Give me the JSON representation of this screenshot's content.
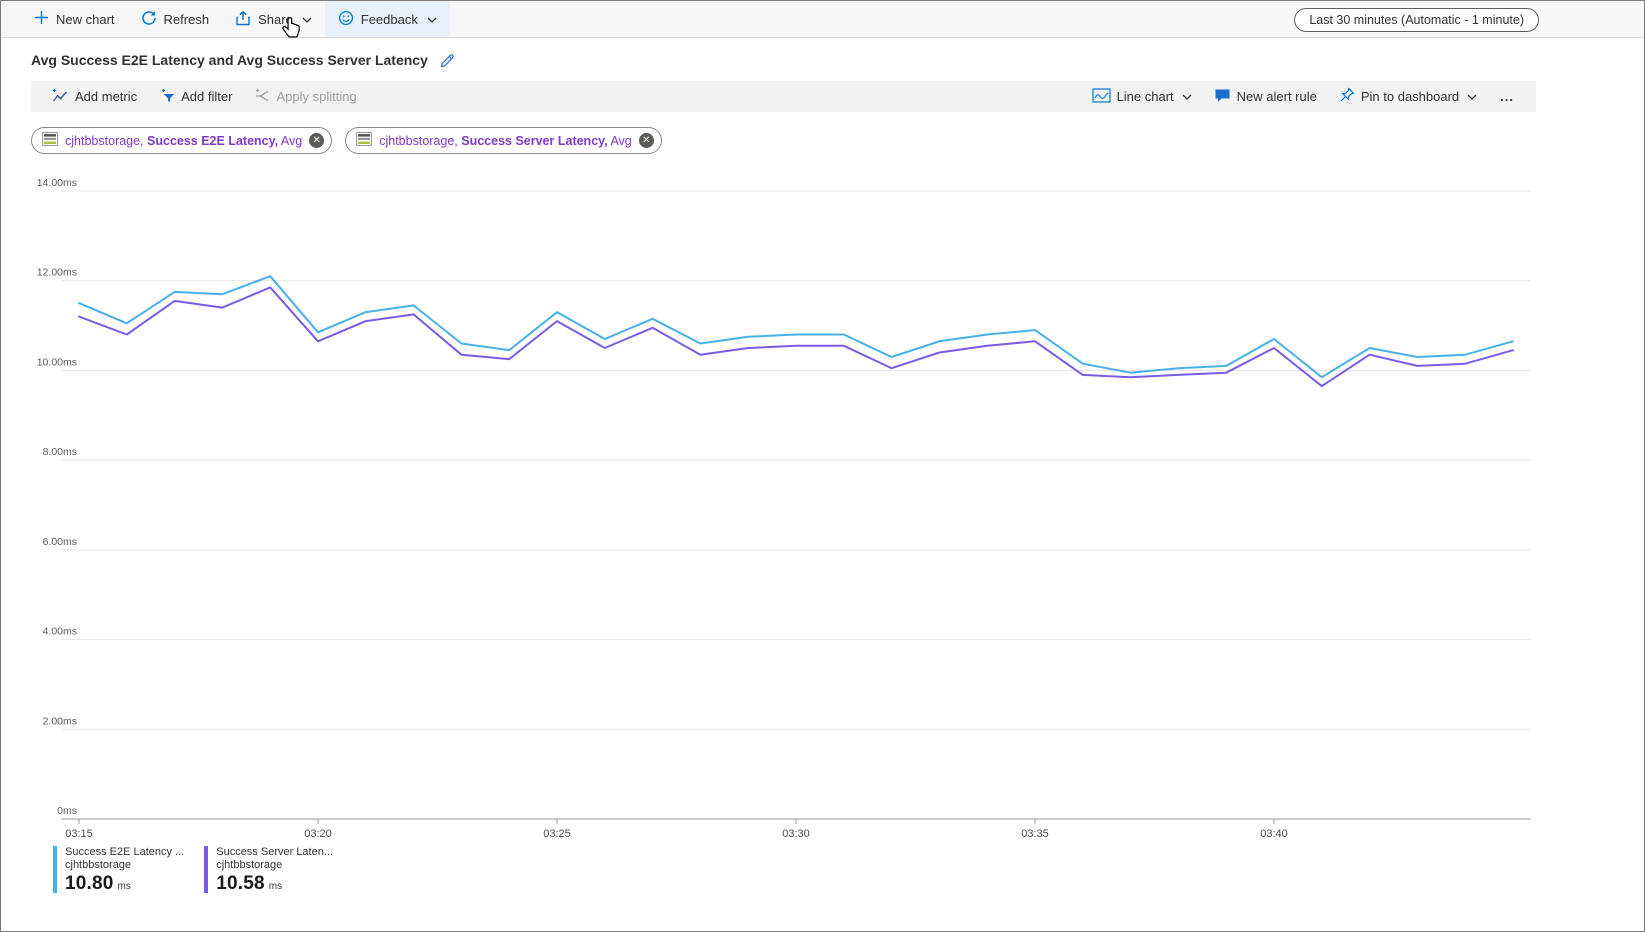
{
  "toolbar": {
    "new_chart": "New chart",
    "refresh": "Refresh",
    "share": "Share",
    "feedback": "Feedback",
    "time_range": "Last 30 minutes (Automatic - 1 minute)"
  },
  "header": {
    "title": "Avg Success E2E Latency and Avg Success Server Latency"
  },
  "chart_toolbar": {
    "add_metric": "Add metric",
    "add_filter": "Add filter",
    "apply_splitting": "Apply splitting",
    "chart_type": "Line chart",
    "new_alert_rule": "New alert rule",
    "pin_to_dashboard": "Pin to dashboard",
    "more": "..."
  },
  "metric_pills": [
    {
      "resource": "cjhtbbstorage,",
      "metric": "Success E2E Latency,",
      "aggregation": "Avg"
    },
    {
      "resource": "cjhtbbstorage,",
      "metric": "Success Server Latency,",
      "aggregation": "Avg"
    }
  ],
  "legend": [
    {
      "name": "Success E2E Latency ...",
      "resource": "cjhtbbstorage",
      "value": "10.80",
      "unit": "ms",
      "color": "#47b0e8"
    },
    {
      "name": "Success Server Laten...",
      "resource": "cjhtbbstorage",
      "value": "10.58",
      "unit": "ms",
      "color": "#7b5be6"
    }
  ],
  "colors": {
    "accent_blue": "#0078d4",
    "pill_purple": "#7e3ac8",
    "series_blue": "#47b0e8",
    "series_purple": "#7b5be6",
    "gridline": "#e3e3e3",
    "axis": "#9a9a9a"
  },
  "chart_data": {
    "type": "line",
    "title": "Avg Success E2E Latency and Avg Success Server Latency",
    "xlabel": "",
    "ylabel": "",
    "unit": "ms",
    "ylim": [
      0,
      14
    ],
    "grid": "horizontal",
    "legend_position": "bottom-left",
    "y_ticks": [
      "0ms",
      "2.00ms",
      "4.00ms",
      "6.00ms",
      "8.00ms",
      "10.00ms",
      "12.00ms",
      "14.00ms"
    ],
    "x_tick_labels": [
      "03:15",
      "03:20",
      "03:25",
      "03:30",
      "03:35",
      "03:40"
    ],
    "x_tick_minutes": [
      0,
      5,
      10,
      15,
      20,
      25
    ],
    "x": [
      "03:15",
      "03:16",
      "03:17",
      "03:18",
      "03:19",
      "03:20",
      "03:21",
      "03:22",
      "03:23",
      "03:24",
      "03:25",
      "03:26",
      "03:27",
      "03:28",
      "03:29",
      "03:30",
      "03:31",
      "03:32",
      "03:33",
      "03:34",
      "03:35",
      "03:36",
      "03:37",
      "03:38",
      "03:39",
      "03:40",
      "03:41",
      "03:42",
      "03:43",
      "03:44",
      "03:45"
    ],
    "series": [
      {
        "name": "Success E2E Latency (Avg), cjhtbbstorage",
        "color": "#47b0e8",
        "values": [
          11.5,
          11.05,
          11.75,
          11.7,
          12.1,
          10.85,
          11.3,
          11.45,
          10.6,
          10.45,
          11.3,
          10.7,
          11.15,
          10.6,
          10.75,
          10.8,
          10.8,
          10.3,
          10.65,
          10.8,
          10.9,
          10.15,
          9.95,
          10.05,
          10.1,
          10.7,
          9.85,
          10.5,
          10.3,
          10.35,
          10.65
        ]
      },
      {
        "name": "Success Server Latency (Avg), cjhtbbstorage",
        "color": "#7b5be6",
        "values": [
          11.2,
          10.8,
          11.55,
          11.4,
          11.85,
          10.65,
          11.1,
          11.25,
          10.35,
          10.25,
          11.1,
          10.5,
          10.95,
          10.35,
          10.5,
          10.55,
          10.55,
          10.05,
          10.4,
          10.55,
          10.65,
          9.9,
          9.85,
          9.9,
          9.95,
          10.5,
          9.65,
          10.35,
          10.1,
          10.15,
          10.45
        ]
      }
    ]
  }
}
